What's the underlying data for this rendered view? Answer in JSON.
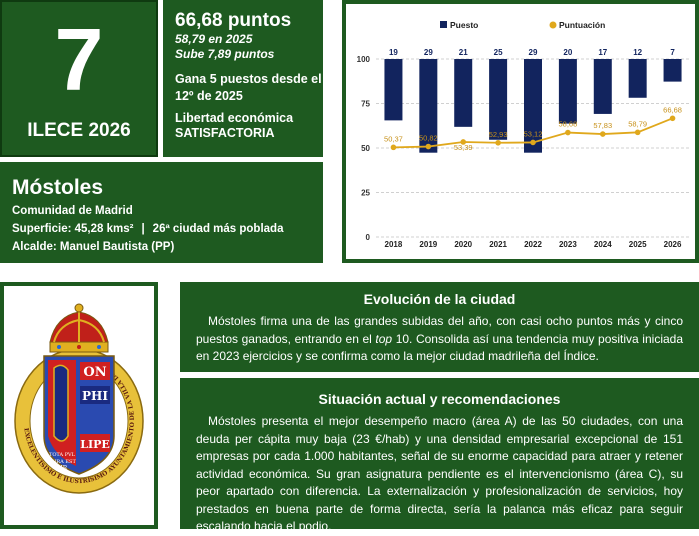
{
  "rank": {
    "number": "7",
    "label": "ILECE 2026"
  },
  "score": {
    "title": "66,68 puntos",
    "sub1": "58,79 en 2025",
    "sub2": "Sube 7,89 puntos",
    "gain": "Gana 5 puestos desde el 12º de 2025",
    "lib_label": "Libertad económica",
    "lib_value": "SATISFACTORIA"
  },
  "city": {
    "name": "Móstoles",
    "region": "Comunidad de Madrid",
    "surface": "Superficie: 45,28 kms²",
    "separator": "|",
    "population": "26ª ciudad más poblada",
    "mayor": "Alcalde: Manuel Bautista (PP)"
  },
  "chart_data": {
    "type": "bar",
    "categories": [
      "2018",
      "2019",
      "2020",
      "2021",
      "2022",
      "2023",
      "2024",
      "2025",
      "2026"
    ],
    "legend": [
      "Puesto",
      "Puntuación"
    ],
    "legend_position": "top",
    "series": [
      {
        "name": "Puesto",
        "type": "bar",
        "values": [
          19,
          29,
          21,
          25,
          29,
          20,
          17,
          12,
          7
        ],
        "labels": [
          "19",
          "29",
          "21",
          "25",
          "29",
          "20",
          "17",
          "12",
          "7"
        ],
        "color": "#12245e"
      },
      {
        "name": "Puntuación",
        "type": "line",
        "values": [
          50.37,
          50.82,
          53.39,
          52.93,
          53.12,
          58.68,
          57.83,
          58.79,
          66.68
        ],
        "labels": [
          "50,37",
          "50,82",
          "53,39",
          "52,93",
          "53,12",
          "58,68",
          "57,83",
          "58,79",
          "66,68"
        ],
        "color": "#e0a81c"
      }
    ],
    "y_ticks": [
      "100",
      "75",
      "50",
      "25",
      "0"
    ],
    "ylim": [
      0,
      100
    ],
    "grid": true
  },
  "crest": {
    "ring_text": "EXCELENTÍSIMO E ILUSTRÍSIMO AYUNTAMIENTO DE LA VILLA DE MÓSTOLES",
    "banner_top": "ON",
    "banner_mid": "PHI",
    "banner_bot": "LIPE",
    "motto_1": "TOTA PVL",
    "motto_2": "CHRA EST",
    "motto_3": "MR"
  },
  "evolution": {
    "title": "Evolución de la ciudad",
    "text_a": "Móstoles firma una de las grandes subidas del año, con casi ocho puntos más y cinco puestos ganados, entrando en el ",
    "text_it": "top",
    "text_b": " 10. Consolida así una tendencia muy positiva iniciada en 2023 ejercicios y se confirma como la mejor ciudad madrileña del Índice."
  },
  "situation": {
    "title": "Situación actual y recomendaciones",
    "text": "Móstoles presenta el mejor desempeño macro (área A) de las 50 ciudades, con una deuda per cápita muy baja (23 €/hab) y una densidad empresarial excepcional de 151 empresas por cada 1.000 habitantes, señal de su enorme capacidad para atraer y retener actividad económica. Su gran asignatura pendiente es el intervencionismo (área C), su peor apartado con diferencia. La externalización y profesionalización de servicios, hoy prestados en buena parte de forma directa, sería la palanca más eficaz para seguir escalando hacia el podio."
  }
}
